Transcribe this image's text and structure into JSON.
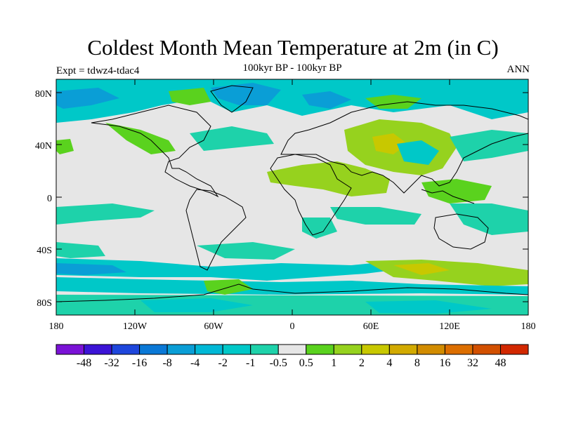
{
  "title": "Coldest Month Mean Temperature at 2m (in C)",
  "subtitle": "100kyr BP - 100kyr BP",
  "experiment_label": "Expt = tdwz4-tdac4",
  "period_label": "ANN",
  "lat_labels": [
    "80N",
    "40N",
    "0",
    "40S",
    "80S"
  ],
  "lon_labels": [
    "180",
    "120W",
    "60W",
    "0",
    "60E",
    "120E",
    "180"
  ],
  "colorbar": {
    "labels": [
      "-48",
      "-32",
      "-16",
      "-8",
      "-4",
      "-2",
      "-1",
      "-0.5",
      "0.5",
      "1",
      "2",
      "4",
      "8",
      "16",
      "32",
      "48"
    ],
    "colors": [
      "#7a12d6",
      "#3c14d6",
      "#1e46dc",
      "#0a78d6",
      "#0a9ed6",
      "#00b8d6",
      "#00c8c8",
      "#1ed2aa",
      "#e6e6e6",
      "#5ad21e",
      "#96d21e",
      "#c8c800",
      "#d2aa00",
      "#d28c00",
      "#dc6e00",
      "#d25000",
      "#d22800"
    ]
  },
  "palette": {
    "no_change": "#e6e6e6",
    "cool_light": "#1ed2aa",
    "cool_mid": "#00c8c8",
    "cool_strong": "#0a9ed6",
    "cool_deep": "#1e46dc",
    "warm_light": "#5ad21e",
    "warm_mid": "#96d21e",
    "warm_strong": "#c8c800",
    "warm_deep": "#d2aa00"
  }
}
